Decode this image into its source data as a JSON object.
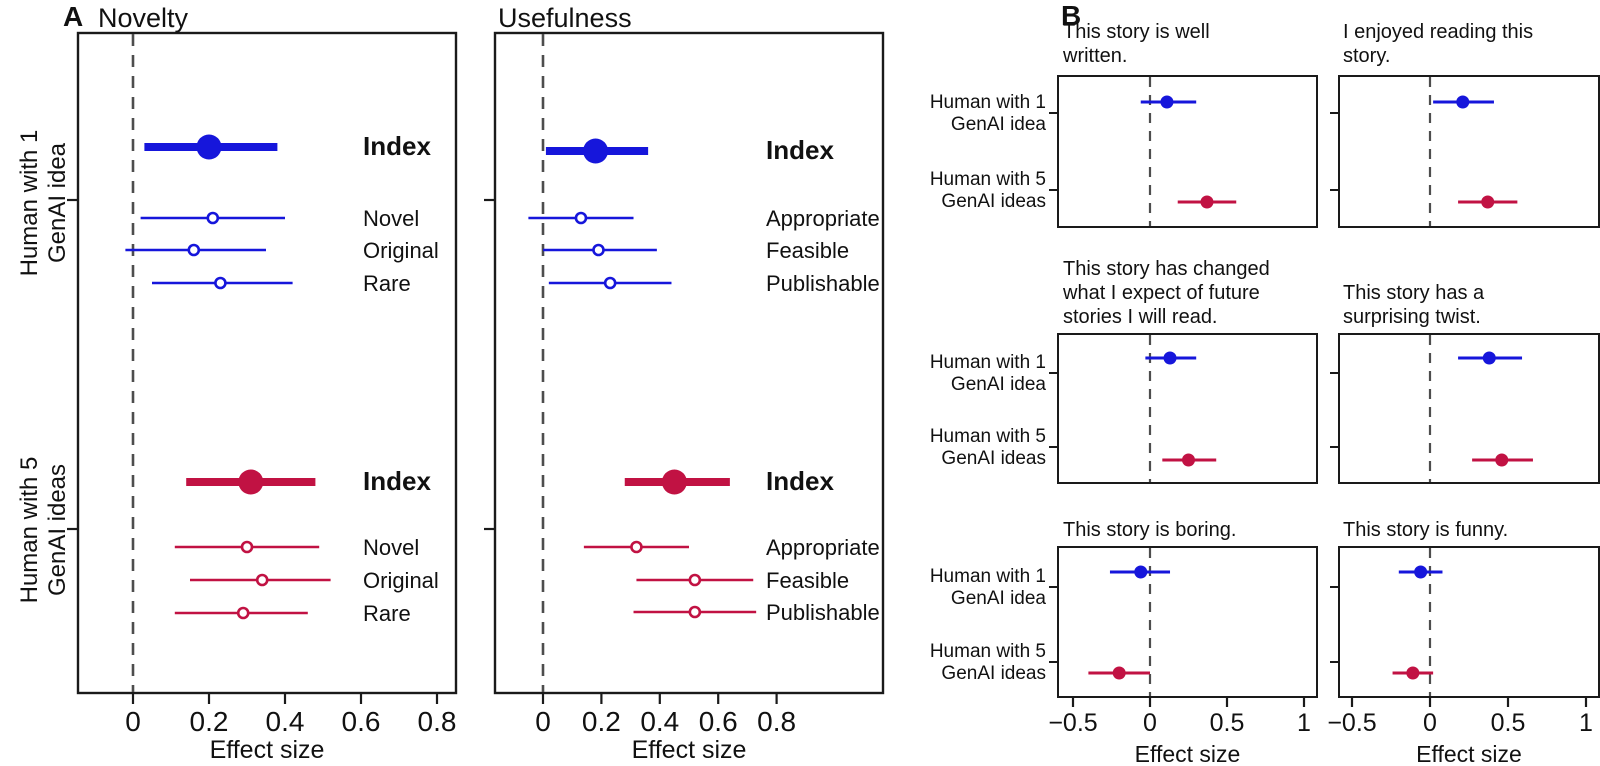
{
  "figure": {
    "panel_a_label": "A",
    "panel_b_label": "B",
    "background_color": "#ffffff",
    "axis_color": "#1a1a1a",
    "zero_line_color": "#4d4d4d",
    "conditions": [
      {
        "id": "human-with-1-genai-idea",
        "label": "Human with 1 GenAI idea",
        "label_lines": [
          "Human with 1",
          "GenAI idea"
        ],
        "color": "#1616DB"
      },
      {
        "id": "human-with-5-genai-ideas",
        "label": "Human with 5 GenAI ideas",
        "label_lines": [
          "Human with 5",
          "GenAI ideas"
        ],
        "color": "#C11243"
      }
    ]
  },
  "chart_data": [
    {
      "id": "novelty",
      "panel": "A",
      "type": "forest",
      "title": "Novelty",
      "xlabel": "Effect size",
      "xlim": [
        -0.145,
        0.85
      ],
      "xticks": [
        0,
        0.2,
        0.4,
        0.6,
        0.8
      ],
      "xtick_labels": [
        "0",
        "0.2",
        "0.4",
        "0.6",
        "0.8"
      ],
      "zero_dashed_line": 0,
      "grid": false,
      "legend": false,
      "groups": [
        {
          "condition": "Human with 1 GenAI idea",
          "color": "#1616DB",
          "rows": [
            {
              "label": "Index",
              "summary": true,
              "value": 0.2,
              "ci": [
                0.03,
                0.38
              ]
            },
            {
              "label": "Novel",
              "summary": false,
              "value": 0.21,
              "ci": [
                0.02,
                0.4
              ]
            },
            {
              "label": "Original",
              "summary": false,
              "value": 0.16,
              "ci": [
                -0.02,
                0.35
              ]
            },
            {
              "label": "Rare",
              "summary": false,
              "value": 0.23,
              "ci": [
                0.05,
                0.42
              ]
            }
          ]
        },
        {
          "condition": "Human with 5 GenAI ideas",
          "color": "#C11243",
          "rows": [
            {
              "label": "Index",
              "summary": true,
              "value": 0.31,
              "ci": [
                0.14,
                0.48
              ]
            },
            {
              "label": "Novel",
              "summary": false,
              "value": 0.3,
              "ci": [
                0.11,
                0.49
              ]
            },
            {
              "label": "Original",
              "summary": false,
              "value": 0.34,
              "ci": [
                0.15,
                0.52
              ]
            },
            {
              "label": "Rare",
              "summary": false,
              "value": 0.29,
              "ci": [
                0.11,
                0.46
              ]
            }
          ]
        }
      ]
    },
    {
      "id": "usefulness",
      "panel": "A",
      "type": "forest",
      "title": "Usefulness",
      "xlabel": "Effect size",
      "xlim": [
        -0.16,
        1.165
      ],
      "xticks": [
        0,
        0.2,
        0.4,
        0.6,
        0.8
      ],
      "xtick_labels": [
        "0",
        "0.2",
        "0.4",
        "0.6",
        "0.8"
      ],
      "zero_dashed_line": 0,
      "grid": false,
      "legend": false,
      "groups": [
        {
          "condition": "Human with 1 GenAI idea",
          "color": "#1616DB",
          "rows": [
            {
              "label": "Index",
              "summary": true,
              "value": 0.18,
              "ci": [
                0.01,
                0.36
              ]
            },
            {
              "label": "Appropriate",
              "summary": false,
              "value": 0.13,
              "ci": [
                -0.05,
                0.31
              ]
            },
            {
              "label": "Feasible",
              "summary": false,
              "value": 0.19,
              "ci": [
                0.0,
                0.39
              ]
            },
            {
              "label": "Publishable",
              "summary": false,
              "value": 0.23,
              "ci": [
                0.02,
                0.44
              ]
            }
          ]
        },
        {
          "condition": "Human with 5 GenAI ideas",
          "color": "#C11243",
          "rows": [
            {
              "label": "Index",
              "summary": true,
              "value": 0.45,
              "ci": [
                0.28,
                0.64
              ]
            },
            {
              "label": "Appropriate",
              "summary": false,
              "value": 0.32,
              "ci": [
                0.14,
                0.5
              ]
            },
            {
              "label": "Feasible",
              "summary": false,
              "value": 0.52,
              "ci": [
                0.32,
                0.72
              ]
            },
            {
              "label": "Publishable",
              "summary": false,
              "value": 0.52,
              "ci": [
                0.31,
                0.73
              ]
            }
          ]
        }
      ]
    },
    {
      "id": "well-written",
      "panel": "B",
      "type": "forest",
      "title": "This story is well written.",
      "title_lines": [
        "This story is well",
        "written."
      ],
      "xlabel": "",
      "xlim": [
        -0.6,
        1.09
      ],
      "xticks": [
        -0.5,
        0,
        0.5,
        1
      ],
      "xtick_labels": [
        "−0.5",
        "0",
        "0.5",
        "1"
      ],
      "show_x_axis": false,
      "zero_dashed_line": 0,
      "grid": false,
      "legend": false,
      "points": [
        {
          "condition": "Human with 1 GenAI idea",
          "color": "#1616DB",
          "value": 0.11,
          "ci": [
            -0.06,
            0.3
          ]
        },
        {
          "condition": "Human with 5 GenAI ideas",
          "color": "#C11243",
          "value": 0.37,
          "ci": [
            0.18,
            0.56
          ]
        }
      ]
    },
    {
      "id": "enjoyed-reading",
      "panel": "B",
      "type": "forest",
      "title": "I enjoyed reading this story.",
      "title_lines": [
        "I enjoyed reading this",
        "story."
      ],
      "xlabel": "",
      "xlim": [
        -0.58,
        1.08
      ],
      "xticks": [
        -0.5,
        0,
        0.5,
        1
      ],
      "xtick_labels": [
        "−0.5",
        "0",
        "0.5",
        "1"
      ],
      "show_x_axis": false,
      "zero_dashed_line": 0,
      "grid": false,
      "legend": false,
      "points": [
        {
          "condition": "Human with 1 GenAI idea",
          "color": "#1616DB",
          "value": 0.21,
          "ci": [
            0.02,
            0.41
          ]
        },
        {
          "condition": "Human with 5 GenAI ideas",
          "color": "#C11243",
          "value": 0.37,
          "ci": [
            0.18,
            0.56
          ]
        }
      ]
    },
    {
      "id": "changed-expectations",
      "panel": "B",
      "type": "forest",
      "title": "This story has changed what I expect of future stories I will read.",
      "title_lines": [
        "This story has changed",
        "what I expect of future",
        "stories I will read."
      ],
      "xlabel": "",
      "xlim": [
        -0.6,
        1.09
      ],
      "xticks": [
        -0.5,
        0,
        0.5,
        1
      ],
      "xtick_labels": [
        "−0.5",
        "0",
        "0.5",
        "1"
      ],
      "show_x_axis": false,
      "zero_dashed_line": 0,
      "grid": false,
      "legend": false,
      "points": [
        {
          "condition": "Human with 1 GenAI idea",
          "color": "#1616DB",
          "value": 0.13,
          "ci": [
            -0.03,
            0.3
          ]
        },
        {
          "condition": "Human with 5 GenAI ideas",
          "color": "#C11243",
          "value": 0.25,
          "ci": [
            0.08,
            0.43
          ]
        }
      ]
    },
    {
      "id": "surprising-twist",
      "panel": "B",
      "type": "forest",
      "title": "This story has a surprising twist.",
      "title_lines": [
        "This story has a",
        "surprising twist."
      ],
      "xlabel": "",
      "xlim": [
        -0.58,
        1.08
      ],
      "xticks": [
        -0.5,
        0,
        0.5,
        1
      ],
      "xtick_labels": [
        "−0.5",
        "0",
        "0.5",
        "1"
      ],
      "show_x_axis": false,
      "zero_dashed_line": 0,
      "grid": false,
      "legend": false,
      "points": [
        {
          "condition": "Human with 1 GenAI idea",
          "color": "#1616DB",
          "value": 0.38,
          "ci": [
            0.18,
            0.59
          ]
        },
        {
          "condition": "Human with 5 GenAI ideas",
          "color": "#C11243",
          "value": 0.46,
          "ci": [
            0.27,
            0.66
          ]
        }
      ]
    },
    {
      "id": "boring",
      "panel": "B",
      "type": "forest",
      "title": "This story is boring.",
      "title_lines": [
        "This story is boring."
      ],
      "xlabel": "Effect size",
      "xlim": [
        -0.6,
        1.09
      ],
      "xticks": [
        -0.5,
        0,
        0.5,
        1
      ],
      "xtick_labels": [
        "−0.5",
        "0",
        "0.5",
        "1"
      ],
      "show_x_axis": true,
      "zero_dashed_line": 0,
      "grid": false,
      "legend": false,
      "points": [
        {
          "condition": "Human with 1 GenAI idea",
          "color": "#1616DB",
          "value": -0.06,
          "ci": [
            -0.26,
            0.13
          ]
        },
        {
          "condition": "Human with 5 GenAI ideas",
          "color": "#C11243",
          "value": -0.2,
          "ci": [
            -0.4,
            0.0
          ]
        }
      ]
    },
    {
      "id": "funny",
      "panel": "B",
      "type": "forest",
      "title": "This story is funny.",
      "title_lines": [
        "This story is funny."
      ],
      "xlabel": "Effect size",
      "xlim": [
        -0.58,
        1.08
      ],
      "xticks": [
        -0.5,
        0,
        0.5,
        1
      ],
      "xtick_labels": [
        "−0.5",
        "0",
        "0.5",
        "1"
      ],
      "show_x_axis": true,
      "zero_dashed_line": 0,
      "grid": false,
      "legend": false,
      "points": [
        {
          "condition": "Human with 1 GenAI idea",
          "color": "#1616DB",
          "value": -0.06,
          "ci": [
            -0.2,
            0.08
          ]
        },
        {
          "condition": "Human with 5 GenAI ideas",
          "color": "#C11243",
          "value": -0.11,
          "ci": [
            -0.24,
            0.02
          ]
        }
      ]
    }
  ]
}
